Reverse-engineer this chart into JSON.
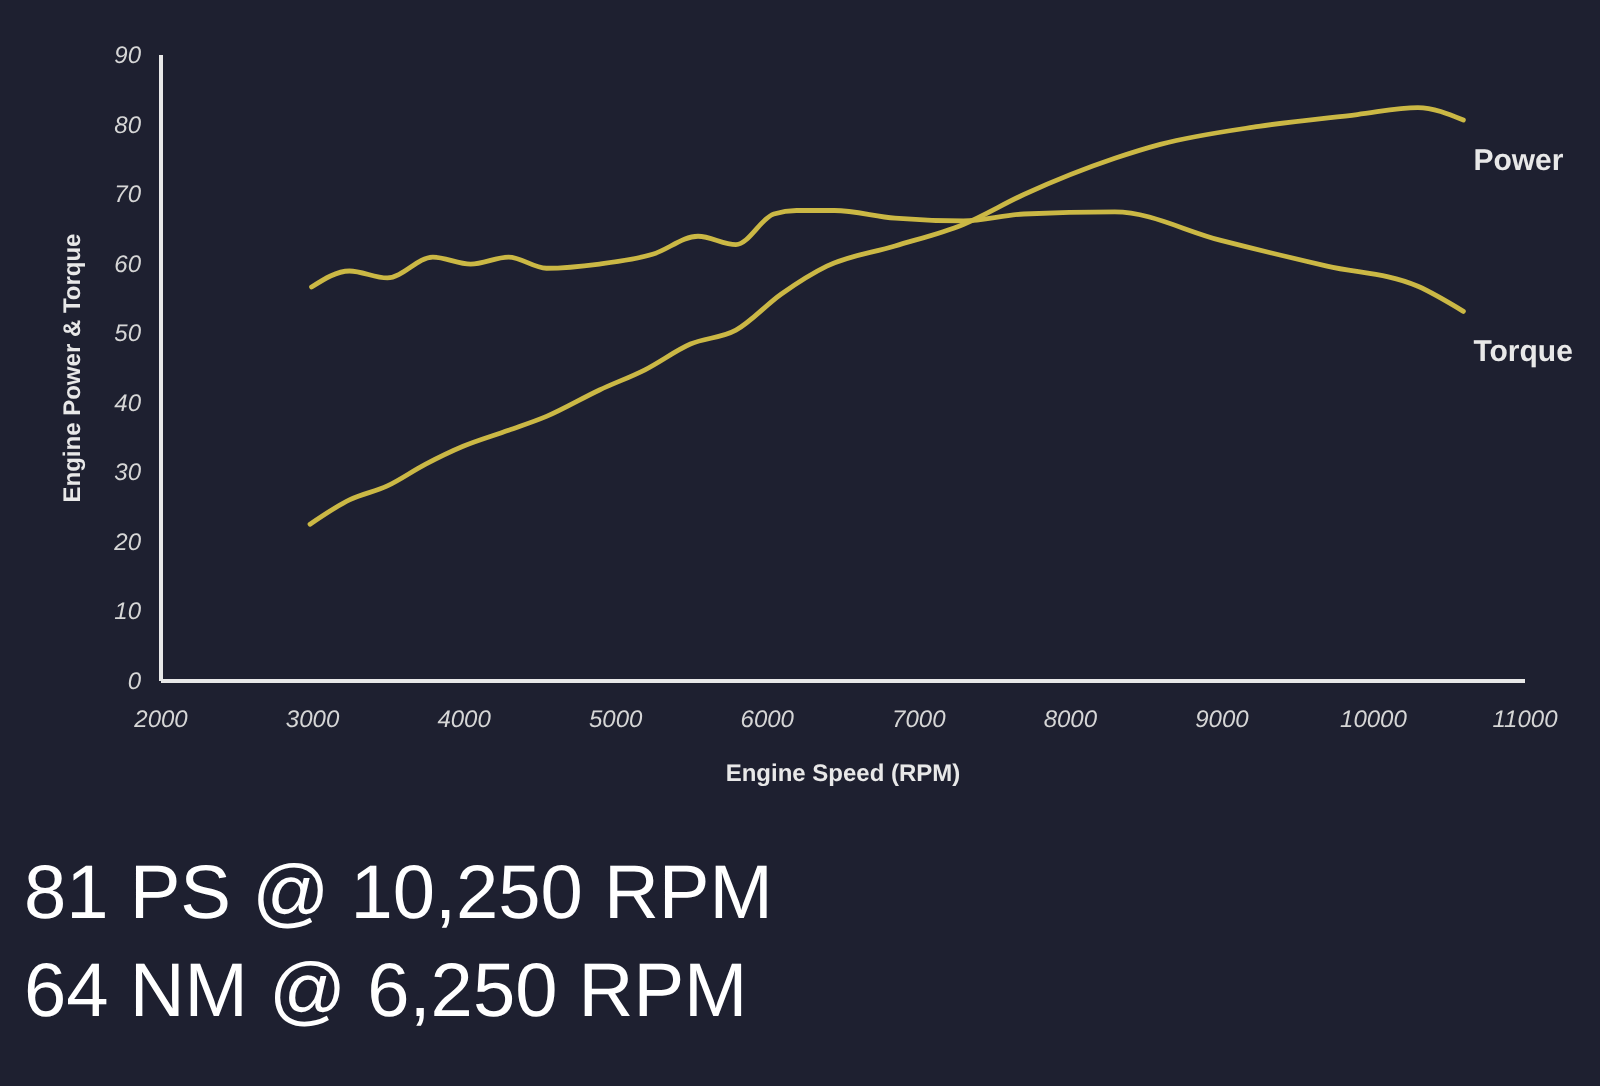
{
  "chart_data": {
    "type": "line",
    "xlabel": "Engine Speed (RPM)",
    "ylabel": "Engine Power & Torque",
    "xlim": [
      2000,
      11000
    ],
    "xticks": [
      2000,
      3000,
      4000,
      5000,
      6000,
      7000,
      8000,
      9000,
      10000,
      11000
    ],
    "ylim": [
      0,
      90
    ],
    "yticks": [
      0,
      10,
      20,
      30,
      40,
      50,
      60,
      70,
      80,
      90
    ],
    "grid": false,
    "legend": false,
    "marker": "none",
    "line_style": "solid",
    "series": [
      {
        "name": "Power",
        "color": "#cbb845",
        "x": [
          2990,
          3250,
          3500,
          3750,
          4000,
          4300,
          4550,
          4900,
          5200,
          5500,
          5800,
          6100,
          6400,
          6850,
          7300,
          7700,
          8300,
          8600,
          9250,
          9900,
          10300,
          10600
        ],
        "values": [
          22.4,
          25.9,
          27.9,
          31,
          33.6,
          35.9,
          37.9,
          41.7,
          44.6,
          48.3,
          50.3,
          55.5,
          59.5,
          62.4,
          65.5,
          69.8,
          75,
          77,
          79.6,
          81.3,
          82.3,
          80.5
        ]
      },
      {
        "name": "Torque",
        "color": "#cbb845",
        "x": [
          3000,
          3250,
          3500,
          3800,
          4050,
          4300,
          4550,
          4900,
          5250,
          5550,
          5800,
          6050,
          6200,
          6450,
          6850,
          7300,
          7700,
          8300,
          9000,
          9700,
          10300,
          10600
        ],
        "values": [
          56.5,
          58.8,
          57.8,
          60.8,
          59.8,
          60.8,
          59.2,
          59.8,
          61.2,
          63.8,
          62.6,
          67,
          67.5,
          67.5,
          66.4,
          66,
          67,
          67.3,
          63.2,
          59.5,
          56.6,
          53
        ]
      }
    ],
    "annotations": [
      "81 PS @ 10,250 RPM",
      "64 NM @ 6,250 RPM"
    ]
  }
}
